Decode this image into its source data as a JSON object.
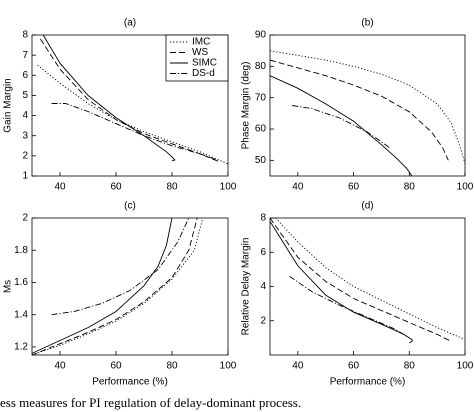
{
  "chart_data": [
    {
      "type": "line",
      "title": "(a)",
      "ylabel": "Gain Margin",
      "xlim": [
        30,
        100
      ],
      "xticks": [
        40,
        60,
        80,
        100
      ],
      "ylim": [
        1,
        8
      ],
      "yticks": [
        1,
        2,
        3,
        4,
        5,
        6,
        7,
        8
      ],
      "legend": "upper right",
      "series": [
        {
          "name": "IMC",
          "color": "#000000",
          "dash": "dotted",
          "x": [
            32,
            40,
            50,
            60,
            70,
            80,
            90,
            100
          ],
          "values": [
            6.5,
            5.6,
            4.6,
            3.8,
            3.2,
            2.7,
            2.2,
            1.6
          ]
        },
        {
          "name": "WS",
          "color": "#000000",
          "dash": "dashed",
          "x": [
            33,
            40,
            50,
            60,
            70,
            80,
            90,
            97
          ],
          "values": [
            7.8,
            6.3,
            4.8,
            3.8,
            3.1,
            2.6,
            2.1,
            1.7
          ]
        },
        {
          "name": "SIMC",
          "color": "#000000",
          "dash": "solid",
          "x": [
            34,
            40,
            50,
            60,
            70,
            78,
            80,
            81,
            80
          ],
          "values": [
            8,
            6.6,
            5,
            3.9,
            3,
            2.2,
            1.95,
            1.8,
            1.75
          ]
        },
        {
          "name": "DS-d",
          "color": "#000000",
          "dash": "dashdot",
          "x": [
            37,
            42,
            50,
            60,
            70,
            80,
            90,
            96
          ],
          "values": [
            4.6,
            4.6,
            4.2,
            3.6,
            3,
            2.5,
            2.1,
            1.8
          ]
        }
      ]
    },
    {
      "type": "line",
      "title": "(b)",
      "ylabel": "Phase Margin (deg)",
      "xlim": [
        30,
        100
      ],
      "xticks": [
        40,
        60,
        80,
        100
      ],
      "ylim": [
        45,
        90
      ],
      "yticks": [
        50,
        60,
        70,
        80,
        90
      ],
      "series": [
        {
          "name": "IMC",
          "color": "#000000",
          "dash": "dotted",
          "x": [
            30,
            40,
            50,
            60,
            70,
            80,
            90,
            95,
            98,
            100
          ],
          "values": [
            85,
            83.5,
            82,
            80,
            77.5,
            74,
            68,
            62,
            55,
            49
          ]
        },
        {
          "name": "WS",
          "color": "#000000",
          "dash": "dashed",
          "x": [
            30,
            40,
            50,
            60,
            70,
            80,
            88,
            92,
            94
          ],
          "values": [
            82,
            79.5,
            77,
            74,
            70.5,
            65.5,
            59,
            54,
            50
          ]
        },
        {
          "name": "SIMC",
          "color": "#000000",
          "dash": "solid",
          "x": [
            30,
            40,
            50,
            60,
            70,
            75,
            79,
            81
          ],
          "values": [
            77,
            73,
            68,
            62.5,
            55,
            51,
            47.5,
            45
          ]
        },
        {
          "name": "DS-d",
          "color": "#000000",
          "dash": "dashdot",
          "x": [
            38,
            45,
            55,
            65,
            73
          ],
          "values": [
            67.5,
            66.5,
            63.5,
            59,
            54
          ]
        }
      ]
    },
    {
      "type": "line",
      "title": "(c)",
      "ylabel": "Ms",
      "xlabel": "Performance (%)",
      "xlim": [
        30,
        100
      ],
      "xticks": [
        40,
        60,
        80,
        100
      ],
      "ylim": [
        1.15,
        2
      ],
      "yticks": [
        1.2,
        1.4,
        1.6,
        1.8,
        2
      ],
      "series": [
        {
          "name": "IMC",
          "color": "#000000",
          "dash": "dotted",
          "x": [
            30,
            40,
            50,
            60,
            70,
            80,
            88,
            91
          ],
          "values": [
            1.15,
            1.21,
            1.28,
            1.36,
            1.47,
            1.62,
            1.8,
            2
          ]
        },
        {
          "name": "WS",
          "color": "#000000",
          "dash": "dashed",
          "x": [
            30,
            40,
            50,
            60,
            70,
            80,
            86,
            89
          ],
          "values": [
            1.15,
            1.22,
            1.29,
            1.37,
            1.48,
            1.63,
            1.8,
            2
          ]
        },
        {
          "name": "SIMC",
          "color": "#000000",
          "dash": "solid",
          "x": [
            30,
            40,
            50,
            60,
            70,
            75,
            78,
            80
          ],
          "values": [
            1.16,
            1.24,
            1.32,
            1.42,
            1.58,
            1.7,
            1.83,
            2
          ]
        },
        {
          "name": "DS-d",
          "color": "#000000",
          "dash": "dashdot",
          "x": [
            37,
            45,
            55,
            65,
            75,
            82,
            86
          ],
          "values": [
            1.4,
            1.42,
            1.47,
            1.55,
            1.68,
            1.85,
            2
          ]
        }
      ]
    },
    {
      "type": "line",
      "title": "(d)",
      "ylabel": "Relative Delay Margin",
      "xlabel": "Performance (%)",
      "xlim": [
        30,
        100
      ],
      "xticks": [
        40,
        60,
        80,
        100
      ],
      "ylim": [
        0,
        8
      ],
      "yticks": [
        2,
        4,
        6,
        8
      ],
      "series": [
        {
          "name": "IMC",
          "color": "#000000",
          "dash": "dotted",
          "x": [
            32,
            40,
            50,
            60,
            70,
            80,
            90,
            100
          ],
          "values": [
            8,
            6.6,
            5.1,
            4,
            3.2,
            2.4,
            1.6,
            0.9
          ]
        },
        {
          "name": "WS",
          "color": "#000000",
          "dash": "dashed",
          "x": [
            30,
            40,
            50,
            60,
            70,
            80,
            90,
            95
          ],
          "values": [
            8,
            5.7,
            4.3,
            3.3,
            2.6,
            1.9,
            1.2,
            0.8
          ]
        },
        {
          "name": "SIMC",
          "color": "#000000",
          "dash": "solid",
          "x": [
            30,
            40,
            50,
            60,
            70,
            78,
            81,
            81,
            80
          ],
          "values": [
            7.8,
            5.2,
            3.5,
            2.5,
            1.8,
            1.2,
            0.9,
            0.8,
            0.7
          ]
        },
        {
          "name": "DS-d",
          "color": "#000000",
          "dash": "dashdot",
          "x": [
            37,
            45,
            55,
            65,
            75,
            79
          ],
          "values": [
            4.6,
            3.7,
            2.9,
            2.2,
            1.5,
            1.1
          ]
        }
      ]
    }
  ],
  "caption": "ess measures for PI regulation of delay-dominant process."
}
